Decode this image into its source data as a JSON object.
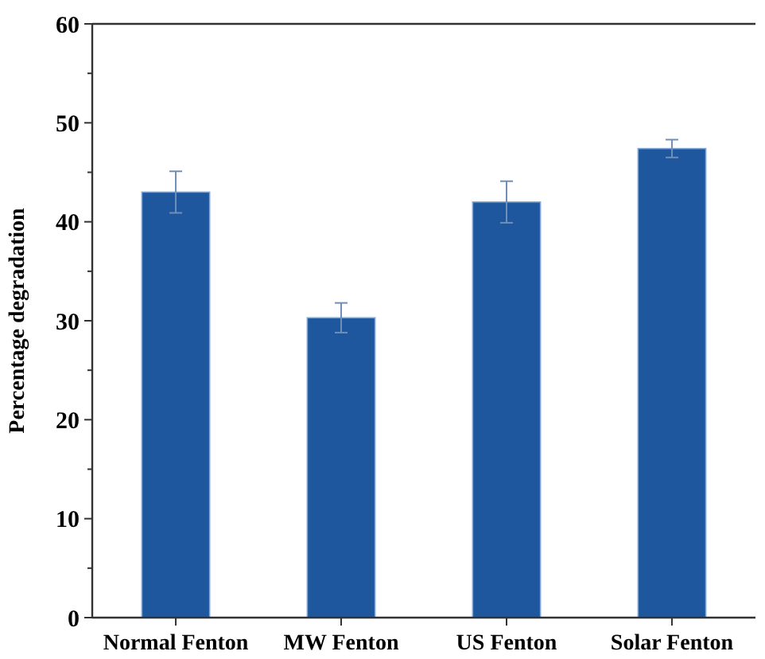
{
  "chart_data": {
    "type": "bar",
    "ylabel": "Percentage degradation",
    "categories": [
      "Normal Fenton",
      "MW Fenton",
      "US Fenton",
      "Solar Fenton"
    ],
    "values": [
      43.0,
      30.3,
      42.0,
      47.4
    ],
    "errors": [
      2.1,
      1.5,
      2.1,
      0.9
    ],
    "color": "#1f579f",
    "ylim": [
      0,
      60
    ],
    "yticks": [
      0,
      {
        "value": 5,
        "label": null
      },
      10,
      {
        "value": 15,
        "label": null
      },
      20,
      {
        "value": 25,
        "label": null
      },
      30,
      {
        "value": 35,
        "label": null
      },
      40,
      {
        "value": 45,
        "label": null
      },
      50,
      {
        "value": 55,
        "label": null
      },
      60
    ],
    "grid": false
  }
}
